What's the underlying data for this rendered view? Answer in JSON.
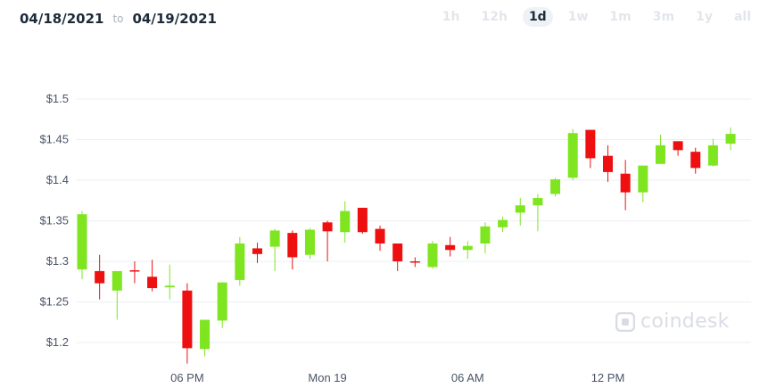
{
  "header": {
    "start_date": "04/18/2021",
    "to_label": "to",
    "end_date": "04/19/2021"
  },
  "periods": [
    {
      "label": "1h",
      "active": false
    },
    {
      "label": "12h",
      "active": false
    },
    {
      "label": "1d",
      "active": true
    },
    {
      "label": "1w",
      "active": false
    },
    {
      "label": "1m",
      "active": false
    },
    {
      "label": "3m",
      "active": false
    },
    {
      "label": "1y",
      "active": false
    },
    {
      "label": "all",
      "active": false
    }
  ],
  "watermark": {
    "text": "coindesk"
  },
  "colors": {
    "up": "#7ee520",
    "down": "#ee1010",
    "grid": "#eceff3",
    "tick_text": "#4a5568",
    "watermark": "#d9dde3"
  },
  "chart_data": {
    "type": "candlestick",
    "title": "",
    "xlabel": "",
    "ylabel": "",
    "ylim": [
      1.17,
      1.54
    ],
    "yticks": [
      {
        "value": 1.2,
        "label": "$1.2"
      },
      {
        "value": 1.25,
        "label": "$1.25"
      },
      {
        "value": 1.3,
        "label": "$1.3"
      },
      {
        "value": 1.35,
        "label": "$1.35"
      },
      {
        "value": 1.4,
        "label": "$1.4"
      },
      {
        "value": 1.45,
        "label": "$1.45"
      },
      {
        "value": 1.5,
        "label": "$1.5"
      }
    ],
    "xlim": [
      0,
      37.5
    ],
    "xticks": [
      {
        "value": 6,
        "label": "06 PM"
      },
      {
        "value": 14,
        "label": "Mon 19"
      },
      {
        "value": 22,
        "label": "06 AM"
      },
      {
        "value": 30,
        "label": "12 PM"
      }
    ],
    "candles": [
      {
        "t": 0,
        "o": 1.29,
        "h": 1.362,
        "l": 1.278,
        "c": 1.358
      },
      {
        "t": 1,
        "o": 1.288,
        "h": 1.308,
        "l": 1.253,
        "c": 1.273
      },
      {
        "t": 2,
        "o": 1.264,
        "h": 1.288,
        "l": 1.228,
        "c": 1.288
      },
      {
        "t": 3,
        "o": 1.289,
        "h": 1.3,
        "l": 1.273,
        "c": 1.288
      },
      {
        "t": 4,
        "o": 1.281,
        "h": 1.302,
        "l": 1.263,
        "c": 1.267
      },
      {
        "t": 5,
        "o": 1.268,
        "h": 1.296,
        "l": 1.253,
        "c": 1.27
      },
      {
        "t": 6,
        "o": 1.264,
        "h": 1.273,
        "l": 1.174,
        "c": 1.193
      },
      {
        "t": 7,
        "o": 1.192,
        "h": 1.228,
        "l": 1.183,
        "c": 1.228
      },
      {
        "t": 8,
        "o": 1.227,
        "h": 1.274,
        "l": 1.218,
        "c": 1.274
      },
      {
        "t": 9,
        "o": 1.277,
        "h": 1.33,
        "l": 1.27,
        "c": 1.322
      },
      {
        "t": 10,
        "o": 1.316,
        "h": 1.323,
        "l": 1.298,
        "c": 1.309
      },
      {
        "t": 11,
        "o": 1.318,
        "h": 1.34,
        "l": 1.288,
        "c": 1.338
      },
      {
        "t": 12,
        "o": 1.335,
        "h": 1.338,
        "l": 1.29,
        "c": 1.305
      },
      {
        "t": 13,
        "o": 1.308,
        "h": 1.341,
        "l": 1.303,
        "c": 1.339
      },
      {
        "t": 14,
        "o": 1.348,
        "h": 1.35,
        "l": 1.3,
        "c": 1.337
      },
      {
        "t": 15,
        "o": 1.336,
        "h": 1.374,
        "l": 1.323,
        "c": 1.362
      },
      {
        "t": 16,
        "o": 1.366,
        "h": 1.366,
        "l": 1.334,
        "c": 1.336
      },
      {
        "t": 17,
        "o": 1.34,
        "h": 1.344,
        "l": 1.313,
        "c": 1.322
      },
      {
        "t": 18,
        "o": 1.322,
        "h": 1.322,
        "l": 1.288,
        "c": 1.3
      },
      {
        "t": 19,
        "o": 1.3,
        "h": 1.305,
        "l": 1.293,
        "c": 1.299
      },
      {
        "t": 20,
        "o": 1.293,
        "h": 1.325,
        "l": 1.291,
        "c": 1.322
      },
      {
        "t": 21,
        "o": 1.32,
        "h": 1.33,
        "l": 1.306,
        "c": 1.314
      },
      {
        "t": 22,
        "o": 1.314,
        "h": 1.325,
        "l": 1.303,
        "c": 1.319
      },
      {
        "t": 23,
        "o": 1.322,
        "h": 1.348,
        "l": 1.31,
        "c": 1.343
      },
      {
        "t": 24,
        "o": 1.342,
        "h": 1.355,
        "l": 1.336,
        "c": 1.351
      },
      {
        "t": 25,
        "o": 1.36,
        "h": 1.378,
        "l": 1.344,
        "c": 1.369
      },
      {
        "t": 26,
        "o": 1.369,
        "h": 1.383,
        "l": 1.337,
        "c": 1.378
      },
      {
        "t": 27,
        "o": 1.383,
        "h": 1.403,
        "l": 1.38,
        "c": 1.401
      },
      {
        "t": 28,
        "o": 1.403,
        "h": 1.463,
        "l": 1.4,
        "c": 1.458
      },
      {
        "t": 29,
        "o": 1.462,
        "h": 1.462,
        "l": 1.415,
        "c": 1.427
      },
      {
        "t": 30,
        "o": 1.43,
        "h": 1.443,
        "l": 1.398,
        "c": 1.41
      },
      {
        "t": 31,
        "o": 1.408,
        "h": 1.425,
        "l": 1.363,
        "c": 1.385
      },
      {
        "t": 32,
        "o": 1.385,
        "h": 1.418,
        "l": 1.373,
        "c": 1.418
      },
      {
        "t": 33,
        "o": 1.42,
        "h": 1.456,
        "l": 1.42,
        "c": 1.443
      },
      {
        "t": 34,
        "o": 1.448,
        "h": 1.448,
        "l": 1.43,
        "c": 1.437
      },
      {
        "t": 35,
        "o": 1.435,
        "h": 1.44,
        "l": 1.408,
        "c": 1.415
      },
      {
        "t": 36,
        "o": 1.418,
        "h": 1.451,
        "l": 1.417,
        "c": 1.443
      },
      {
        "t": 37,
        "o": 1.445,
        "h": 1.465,
        "l": 1.437,
        "c": 1.457
      }
    ]
  }
}
